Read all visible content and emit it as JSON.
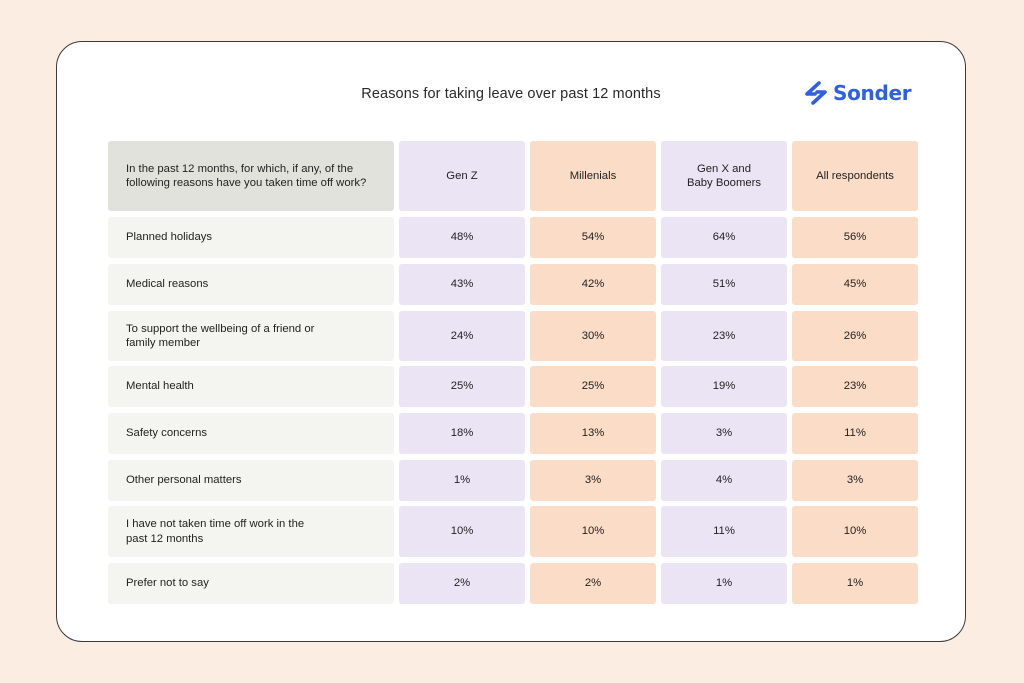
{
  "brand": {
    "logo_text": "Sonder",
    "accent": "#2f5fe4"
  },
  "colors": {
    "page_bg": "#fcede3",
    "card_bg": "#ffffff",
    "question_header_bg": "#e2e2dd",
    "question_cell_bg": "#f4f4f0",
    "purple": "#ebe4f5",
    "peach": "#fbdcc6"
  },
  "chart_data": {
    "type": "table",
    "title": "Reasons for taking leave over past 12 months",
    "question_header": "In the past 12 months, for which, if any, of the following reasons have you taken time off work?",
    "columns": [
      {
        "label": "Gen Z",
        "tone": "purple"
      },
      {
        "label": "Millenials",
        "tone": "peach"
      },
      {
        "label": "Gen X and Baby Boomers",
        "tone": "purple"
      },
      {
        "label": "All respondents",
        "tone": "peach"
      }
    ],
    "rows": [
      {
        "label": "Planned holidays",
        "values": [
          "48%",
          "54%",
          "64%",
          "56%"
        ]
      },
      {
        "label": "Medical reasons",
        "values": [
          "43%",
          "42%",
          "51%",
          "45%"
        ]
      },
      {
        "label": "To support the wellbeing of a friend or family member",
        "values": [
          "24%",
          "30%",
          "23%",
          "26%"
        ]
      },
      {
        "label": "Mental health",
        "values": [
          "25%",
          "25%",
          "19%",
          "23%"
        ]
      },
      {
        "label": "Safety concerns",
        "values": [
          "18%",
          "13%",
          "3%",
          "11%"
        ]
      },
      {
        "label": "Other personal matters",
        "values": [
          "1%",
          "3%",
          "4%",
          "3%"
        ]
      },
      {
        "label": "I have not taken time off work in the past 12 months",
        "values": [
          "10%",
          "10%",
          "11%",
          "10%"
        ]
      },
      {
        "label": "Prefer not to say",
        "values": [
          "2%",
          "2%",
          "1%",
          "1%"
        ]
      }
    ]
  }
}
